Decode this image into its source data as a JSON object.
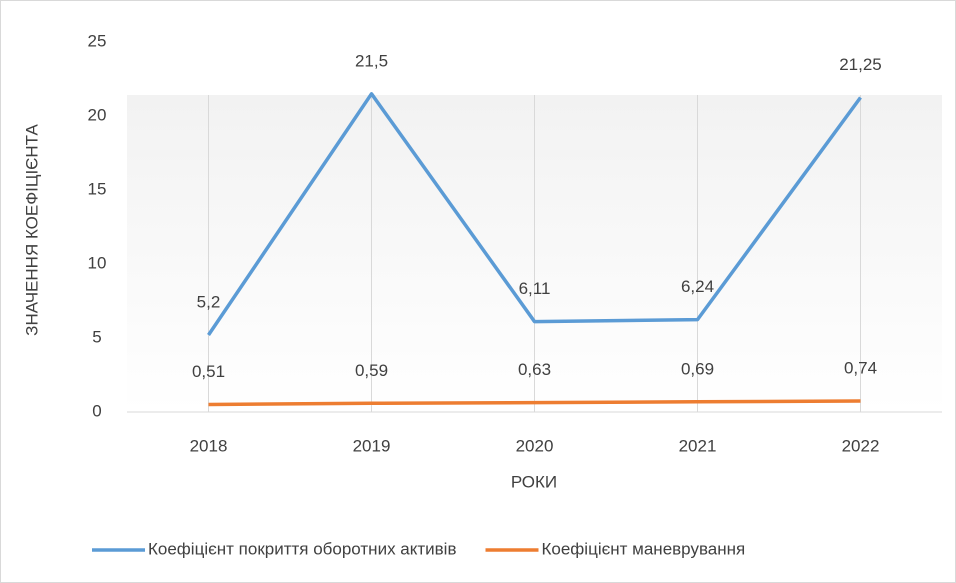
{
  "chart_data": {
    "type": "line",
    "x_label": "РОКИ",
    "y_label": "ЗНАЧЕННЯ КОЕФІЦІЄНТА",
    "categories": [
      "2018",
      "2019",
      "2020",
      "2021",
      "2022"
    ],
    "series": [
      {
        "name": "Коефіцієнт покриття оборотних активів",
        "color": "#5b9bd5",
        "values": [
          5.2,
          21.5,
          6.11,
          6.24,
          21.25
        ],
        "value_labels": [
          "5,2",
          "21,5",
          "6,11",
          "6,24",
          "21,25"
        ]
      },
      {
        "name": "Коефіцієнт маневрування",
        "color": "#ed7d31",
        "values": [
          0.51,
          0.59,
          0.63,
          0.69,
          0.74
        ],
        "value_labels": [
          "0,51",
          "0,59",
          "0,63",
          "0,69",
          "0,74"
        ]
      }
    ],
    "ylim": [
      0,
      25
    ],
    "yticks": [
      0,
      5,
      10,
      15,
      20,
      25
    ],
    "grid": true,
    "legend": "bottom"
  }
}
